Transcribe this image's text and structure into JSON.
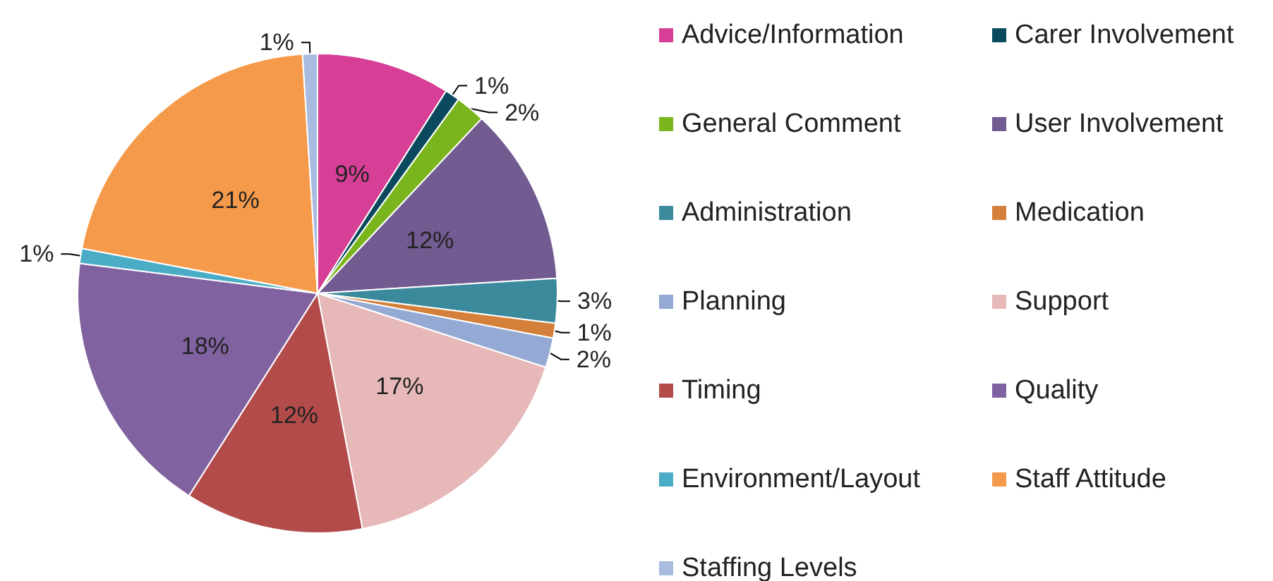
{
  "chart_data": {
    "type": "pie",
    "categories": [
      "Advice/Information",
      "Carer Involvement",
      "General Comment",
      "User Involvement",
      "Administration",
      "Medication",
      "Planning",
      "Support",
      "Timing",
      "Quality",
      "Environment/Layout",
      "Staff Attitude",
      "Staffing Levels"
    ],
    "values": [
      9,
      1,
      2,
      12,
      3,
      1,
      2,
      17,
      12,
      18,
      1,
      21,
      1
    ],
    "colors": [
      "#d63f95",
      "#0b4a5e",
      "#7ab51d",
      "#715b91",
      "#3a8a9c",
      "#d4803a",
      "#94aad4",
      "#e6b8b8",
      "#b34b4b",
      "#8062a0",
      "#4bacc6",
      "#f59a4a",
      "#a9bcdf"
    ],
    "value_labels": [
      "9%",
      "1%",
      "2%",
      "12%",
      "3%",
      "1%",
      "2%",
      "17%",
      "12%",
      "18%",
      "1%",
      "21%",
      "1%"
    ],
    "legend": "right"
  }
}
